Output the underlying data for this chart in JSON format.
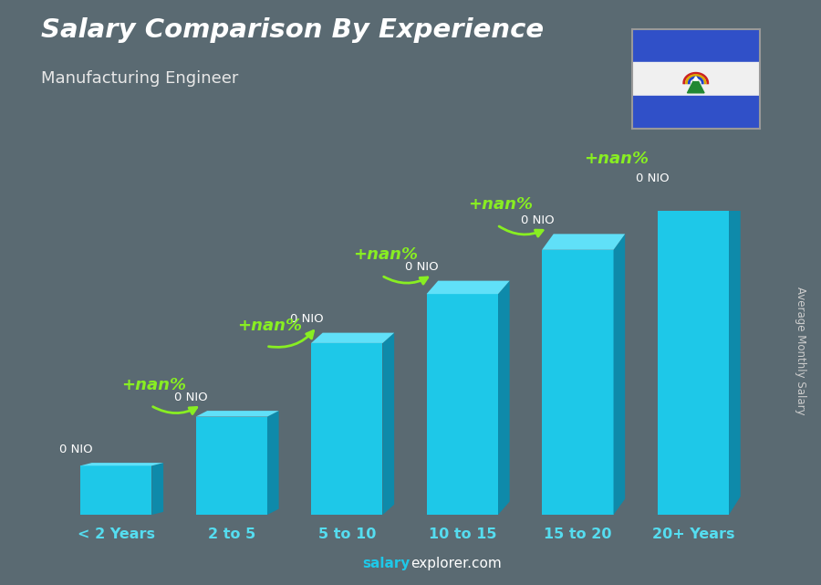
{
  "title": "Salary Comparison By Experience",
  "subtitle": "Manufacturing Engineer",
  "categories": [
    "< 2 Years",
    "2 to 5",
    "5 to 10",
    "10 to 15",
    "15 to 20",
    "20+ Years"
  ],
  "values": [
    1.0,
    2.0,
    3.5,
    4.5,
    5.4,
    6.2
  ],
  "bar_color_face": "#1ec8e8",
  "bar_color_side": "#0e8aaa",
  "bar_color_top": "#60e0f8",
  "value_labels": [
    "0 NIO",
    "0 NIO",
    "0 NIO",
    "0 NIO",
    "0 NIO",
    "0 NIO"
  ],
  "pct_labels": [
    "+nan%",
    "+nan%",
    "+nan%",
    "+nan%",
    "+nan%"
  ],
  "title_color": "#ffffff",
  "subtitle_color": "#e8e8e8",
  "tick_color": "#55ddf0",
  "ylabel_text": "Average Monthly Salary",
  "ylabel_color": "#cccccc",
  "value_label_color": "#ffffff",
  "pct_label_color": "#88ee22",
  "arrow_color": "#88ee22",
  "bg_color": "#5a6a72",
  "footer_salary_color": "#1ec8e8",
  "footer_explorer_color": "#ffffff",
  "flag_blue": "#3050c8",
  "flag_white": "#f0f0f0"
}
